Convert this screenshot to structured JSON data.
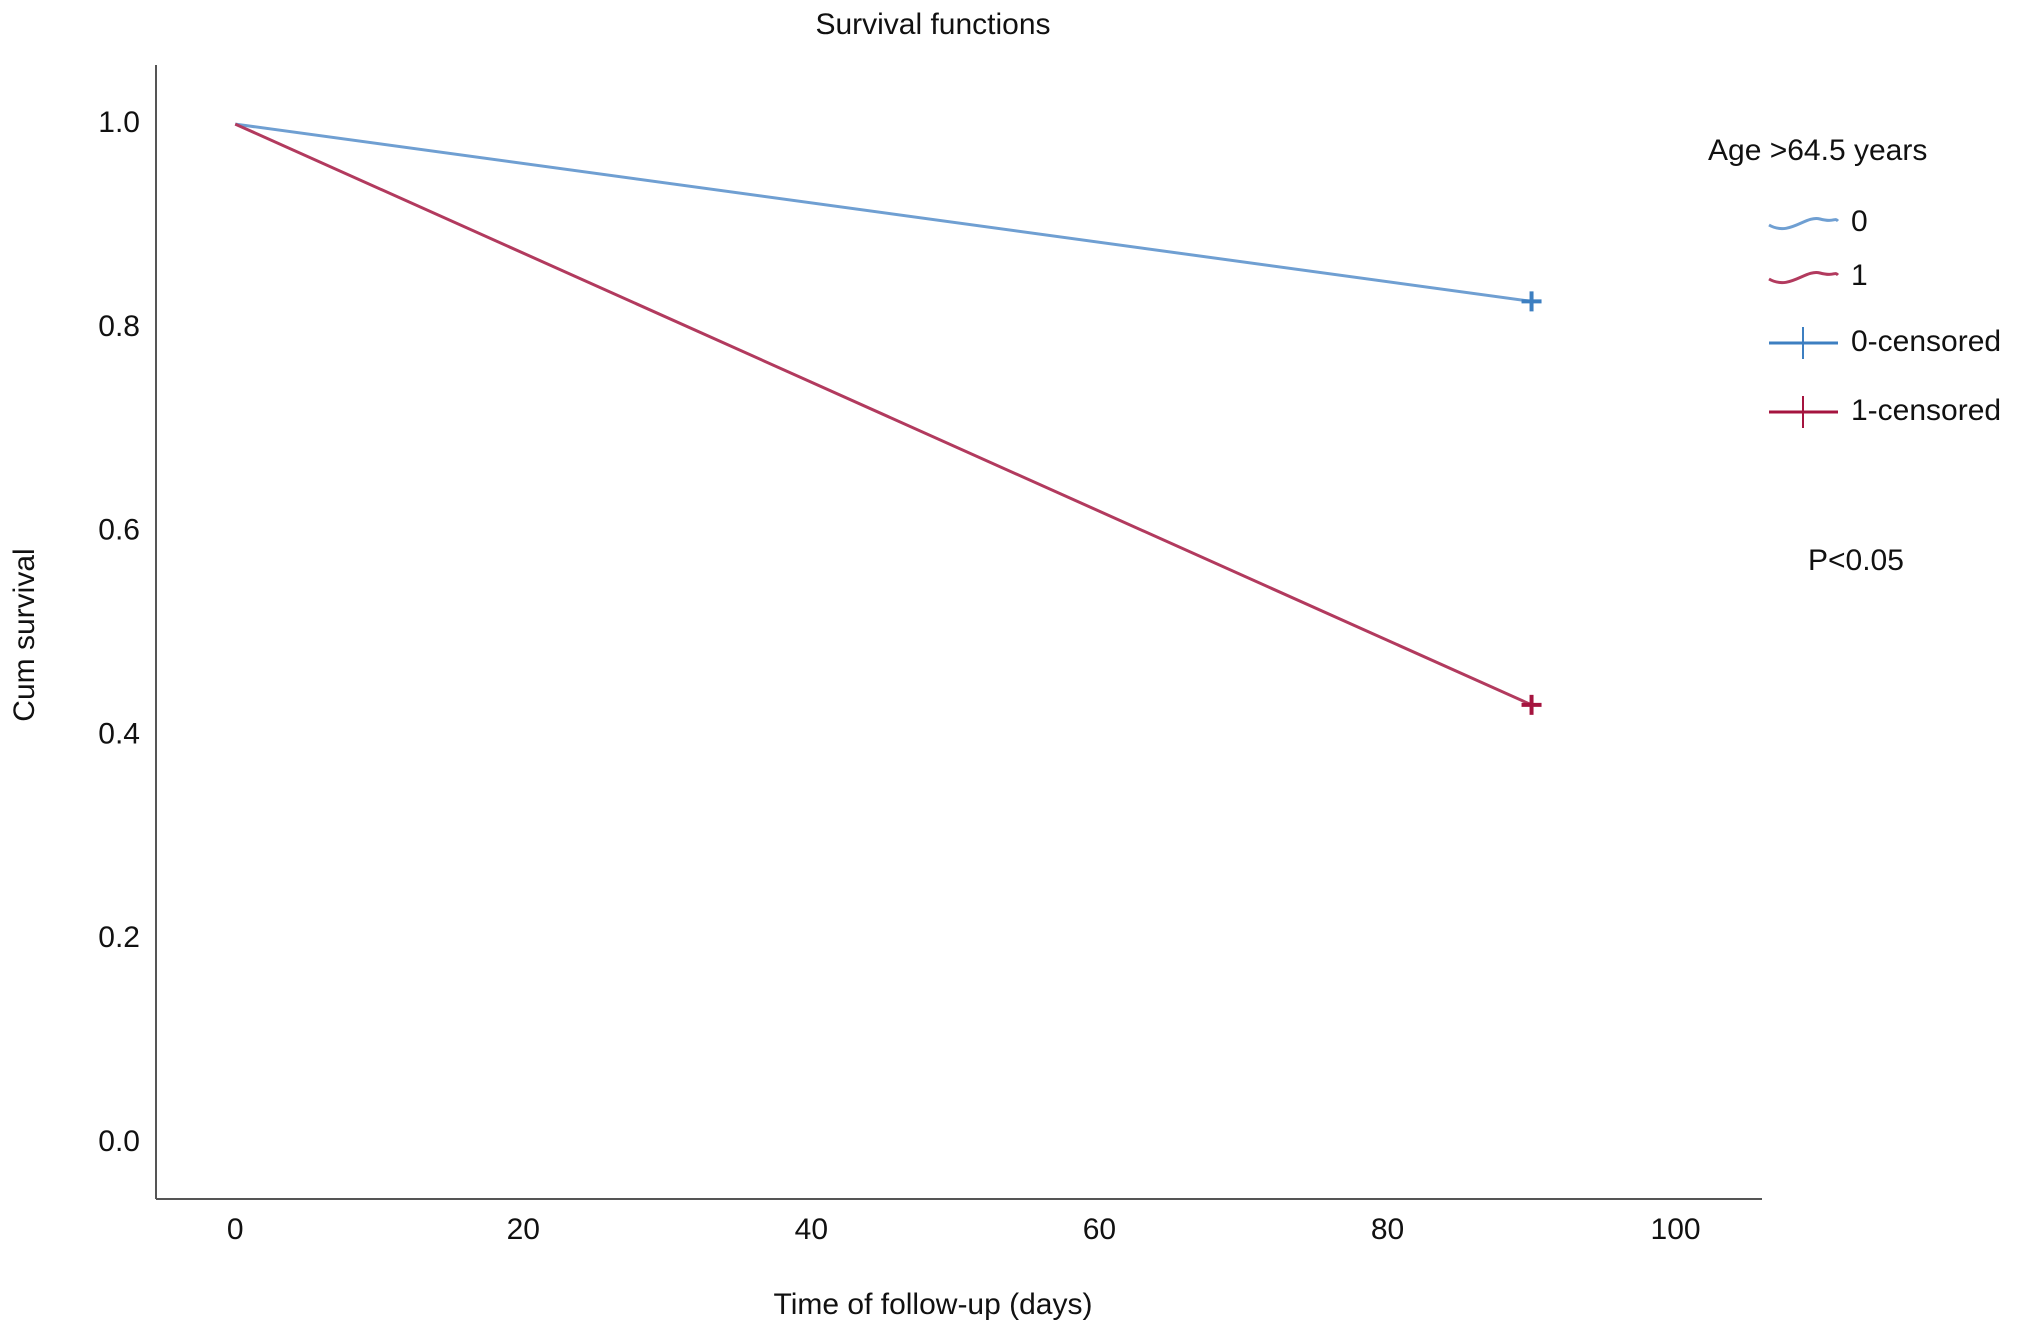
{
  "chart_data": {
    "type": "line",
    "title": "Survival functions",
    "x_label": "Time of follow-up (days)",
    "y_label": "Cum survival",
    "legend_title": "Age >64.5 years",
    "annotation": "P<0.05",
    "xlim": [
      -5.5,
      106
    ],
    "xticks": [
      0,
      20,
      40,
      60,
      80,
      100
    ],
    "ylim": [
      -0.055,
      1.058
    ],
    "yticks": [
      {
        "value": 0,
        "label": "0.0"
      },
      0.2,
      0.4,
      0.6,
      0.8,
      {
        "value": 1,
        "label": "1.0"
      }
    ],
    "grid": false,
    "legend": "right",
    "series": [
      {
        "name": "0",
        "color": "#6f9fd2",
        "style": "line",
        "x": [
          0,
          90
        ],
        "values": [
          1.0,
          0.826
        ]
      },
      {
        "name": "1",
        "color": "#b23a5e",
        "style": "line",
        "x": [
          0,
          90
        ],
        "values": [
          1.0,
          0.43
        ]
      },
      {
        "name": "0-censored",
        "color": "#3d7fc1",
        "style": "censor",
        "x": [
          90
        ],
        "values": [
          0.826
        ]
      },
      {
        "name": "1-censored",
        "color": "#a5143f",
        "style": "censor",
        "x": [
          90
        ],
        "values": [
          0.43
        ]
      }
    ]
  }
}
